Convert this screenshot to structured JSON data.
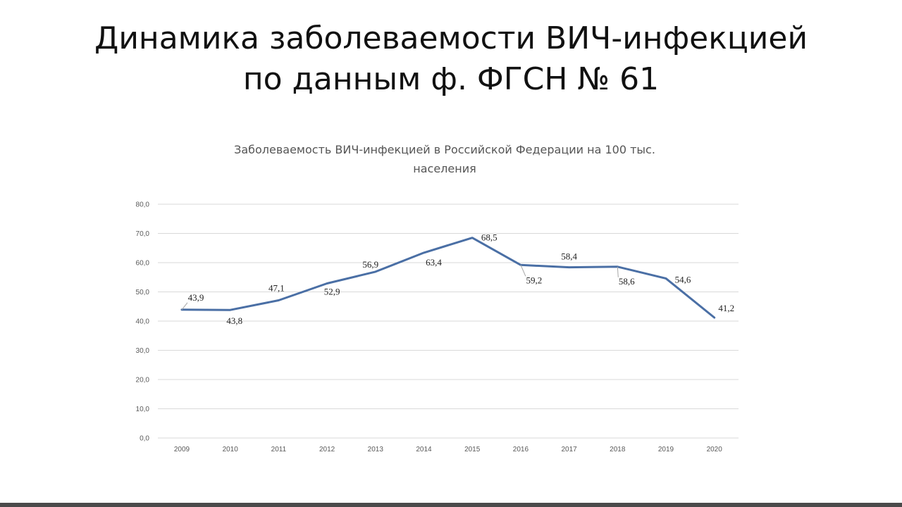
{
  "slide": {
    "title_line1": "Динамика заболеваемости ВИЧ-инфекцией",
    "title_line2": "по данным ф. ФГСН № 61"
  },
  "chart_data": {
    "type": "line",
    "title_line1": "Заболеваемость ВИЧ-инфекцией в Российской Федерации на 100 тыс.",
    "title_line2": "населения",
    "categories": [
      "2009",
      "2010",
      "2011",
      "2012",
      "2013",
      "2014",
      "2015",
      "2016",
      "2017",
      "2018",
      "2019",
      "2020"
    ],
    "series": [
      {
        "values": [
          43.9,
          43.8,
          47.1,
          52.9,
          56.9,
          63.4,
          68.5,
          59.2,
          58.4,
          58.6,
          54.6,
          41.2
        ],
        "labels": [
          "43,9",
          "43,8",
          "47,1",
          "52,9",
          "56,9",
          "63,4",
          "68,5",
          "59,2",
          "58,4",
          "58,6",
          "54,6",
          "41,2"
        ],
        "color": "#4a6fa5"
      }
    ],
    "ylim": [
      0,
      80
    ],
    "yticks": [
      "0,0",
      "10,0",
      "20,0",
      "30,0",
      "40,0",
      "50,0",
      "60,0",
      "70,0",
      "80,0"
    ],
    "grid": true,
    "legend": "none"
  }
}
